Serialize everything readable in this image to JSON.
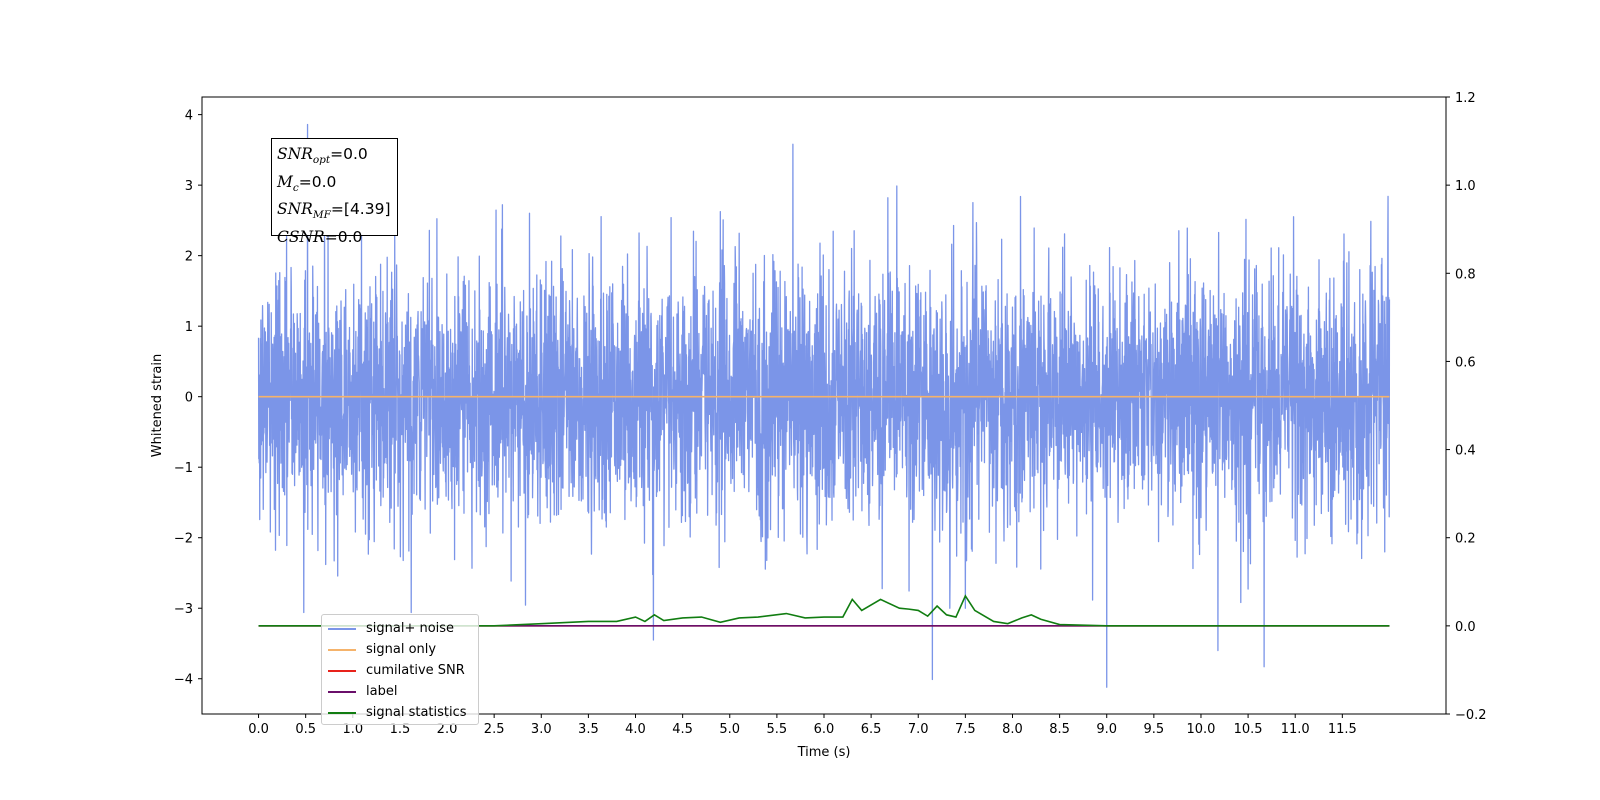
{
  "chart_data": {
    "type": "line",
    "title": "",
    "xlabel": "Time (s)",
    "ylabel": "Whitened strain",
    "xlim": [
      -0.6,
      12.6
    ],
    "ylim": [
      -4.5,
      4.25
    ],
    "y2lim": [
      -0.2,
      1.2
    ],
    "x_ticks": [
      "0.0",
      "0.5",
      "1.0",
      "1.5",
      "2.0",
      "2.5",
      "3.0",
      "3.5",
      "4.0",
      "4.5",
      "5.0",
      "5.5",
      "6.0",
      "6.5",
      "7.0",
      "7.5",
      "8.0",
      "8.5",
      "9.0",
      "9.5",
      "10.0",
      "10.5",
      "11.0",
      "11.5"
    ],
    "y_ticks": [
      "4",
      "3",
      "2",
      "1",
      "0",
      "−1",
      "−2",
      "−3",
      "−4"
    ],
    "y2_ticks": [
      "1.2",
      "1.0",
      "0.8",
      "0.6",
      "0.4",
      "0.2",
      "0.0",
      "−0.2"
    ],
    "grid": false,
    "legend_position": "lower-left",
    "annotation": {
      "snr_opt_sym": "SNR",
      "snr_opt_sub": "opt",
      "snr_opt_val": "=0.0",
      "mc_sym": "M",
      "mc_sub": "c",
      "mc_val": "=0.0",
      "snr_mf_sym": "SNR",
      "snr_mf_sub": "MF",
      "snr_mf_val": "=[4.39]",
      "csnr_sym": "CSNR",
      "csnr_val": "=0.0"
    },
    "series": [
      {
        "name": "signal+ noise",
        "color": "#7b95e8",
        "axis": "left",
        "x_range": [
          0.0,
          12.0
        ],
        "noise_std": 0.9,
        "peaks": [
          [
            0.52,
            3.86
          ],
          [
            5.67,
            3.58
          ],
          [
            1.62,
            -3.06
          ],
          [
            0.48,
            -3.06
          ],
          [
            4.19,
            -3.45
          ],
          [
            7.15,
            -4.01
          ],
          [
            9.0,
            -4.12
          ],
          [
            10.18,
            -3.6
          ],
          [
            10.67,
            -3.83
          ],
          [
            11.95,
            -2.2
          ]
        ]
      },
      {
        "name": "signal only",
        "color": "#f5b36b",
        "axis": "left",
        "x": [
          0.0,
          12.0
        ],
        "values": [
          0.0,
          0.0
        ]
      },
      {
        "name": "cumilative SNR",
        "color": "#e8221b",
        "axis": "right",
        "x": [
          0.0,
          12.0
        ],
        "values": [
          0.0,
          0.0
        ]
      },
      {
        "name": "label",
        "color": "#6a0f6a",
        "axis": "right",
        "x": [
          0.0,
          12.0
        ],
        "values": [
          0.0,
          0.0
        ]
      },
      {
        "name": "signal statistics",
        "color": "#117d11",
        "axis": "right",
        "x": [
          0.0,
          2.5,
          3.0,
          3.5,
          3.8,
          4.0,
          4.1,
          4.2,
          4.3,
          4.5,
          4.7,
          4.9,
          5.1,
          5.3,
          5.6,
          5.8,
          6.0,
          6.2,
          6.3,
          6.4,
          6.6,
          6.8,
          6.9,
          7.0,
          7.1,
          7.2,
          7.3,
          7.4,
          7.5,
          7.6,
          7.8,
          7.95,
          8.1,
          8.2,
          8.3,
          8.5,
          9.0,
          12.0
        ],
        "values": [
          0.0,
          0.0,
          0.005,
          0.01,
          0.01,
          0.02,
          0.01,
          0.025,
          0.012,
          0.018,
          0.02,
          0.008,
          0.018,
          0.02,
          0.028,
          0.018,
          0.02,
          0.02,
          0.06,
          0.035,
          0.06,
          0.04,
          0.038,
          0.035,
          0.022,
          0.045,
          0.025,
          0.02,
          0.068,
          0.035,
          0.01,
          0.005,
          0.018,
          0.025,
          0.015,
          0.003,
          0.0,
          0.0
        ]
      }
    ]
  }
}
